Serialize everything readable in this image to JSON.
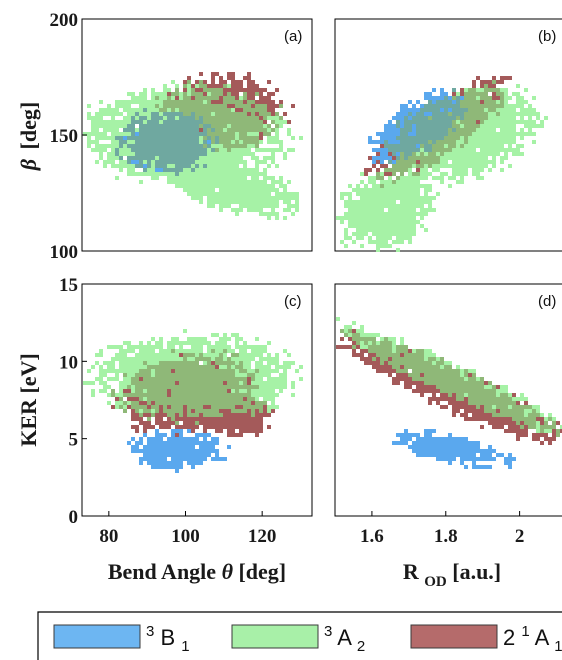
{
  "chart_data": [
    {
      "panel": "(a)",
      "type": "heatmap",
      "xlabel": "",
      "ylabel_main": "β",
      "ylabel_unit": "[deg]",
      "xlim": [
        73,
        133
      ],
      "ylim": [
        100,
        200
      ],
      "xticks": [],
      "yticks": [
        100,
        150,
        200
      ],
      "clusters": [
        {
          "series": "3A2",
          "cx": 100,
          "cy": 150,
          "rx": 26,
          "ry": 20,
          "rot": 0
        },
        {
          "series": "3A2",
          "cx": 112,
          "cy": 128,
          "rx": 18,
          "ry": 10,
          "rot": 15
        },
        {
          "series": "2_1A1",
          "cx": 110,
          "cy": 160,
          "rx": 16,
          "ry": 15,
          "rot": 0
        },
        {
          "series": "3B1",
          "cx": 95,
          "cy": 147,
          "rx": 12,
          "ry": 13,
          "rot": 0
        }
      ]
    },
    {
      "panel": "(b)",
      "type": "heatmap",
      "xlabel": "",
      "ylabel_main": "",
      "ylabel_unit": "",
      "xlim": [
        1.5,
        2.15
      ],
      "ylim": [
        100,
        200
      ],
      "xticks": [],
      "yticks": [],
      "clusters": [
        {
          "series": "3A2",
          "cx": 1.85,
          "cy": 150,
          "rx": 0.2,
          "ry": 18,
          "rot": -20
        },
        {
          "series": "3A2",
          "cx": 1.64,
          "cy": 118,
          "rx": 0.13,
          "ry": 16,
          "rot": -30
        },
        {
          "series": "2_1A1",
          "cx": 1.78,
          "cy": 152,
          "rx": 0.22,
          "ry": 10,
          "rot": -35
        },
        {
          "series": "3B1",
          "cx": 1.72,
          "cy": 153,
          "rx": 0.14,
          "ry": 10,
          "rot": -35
        }
      ]
    },
    {
      "panel": "(c)",
      "type": "heatmap",
      "xlabel_main": "Bend Angle ",
      "xlabel_symbol": "θ",
      "xlabel_unit": " [deg]",
      "ylabel_main": "KER [eV]",
      "xlim": [
        73,
        133
      ],
      "ylim": [
        0,
        15
      ],
      "xticks": [
        80,
        100,
        120
      ],
      "yticks": [
        0,
        5,
        10,
        15
      ],
      "clusters": [
        {
          "series": "3A2",
          "cx": 102,
          "cy": 9,
          "rx": 25,
          "ry": 2.6,
          "rot": 0
        },
        {
          "series": "2_1A1",
          "cx": 100,
          "cy": 8,
          "rx": 17,
          "ry": 2.4,
          "rot": -10
        },
        {
          "series": "2_1A1",
          "cx": 113,
          "cy": 6.5,
          "rx": 9,
          "ry": 1.3,
          "rot": 0
        },
        {
          "series": "3B1",
          "cx": 98,
          "cy": 4.3,
          "rx": 12,
          "ry": 1.2,
          "rot": 0
        }
      ]
    },
    {
      "panel": "(d)",
      "type": "heatmap",
      "xlabel_main": "R",
      "xlabel_sub": "OD",
      "xlabel_unit": " [a.u.]",
      "ylabel_main": "",
      "xlim": [
        1.5,
        2.15
      ],
      "ylim": [
        0,
        15
      ],
      "xticks": [
        1.6,
        1.8,
        2.0
      ],
      "xtick_labels": [
        "1.6",
        "1.8",
        "2"
      ],
      "yticks": [],
      "clusters": [
        {
          "series": "2_1A1",
          "cx": 1.82,
          "cy": 8.2,
          "rx": 0.32,
          "ry": 1.3,
          "rot": 25
        },
        {
          "series": "3A2",
          "cx": 1.82,
          "cy": 8.8,
          "rx": 0.33,
          "ry": 1.0,
          "rot": 25
        },
        {
          "series": "3B1",
          "cx": 1.82,
          "cy": 4.3,
          "rx": 0.15,
          "ry": 0.9,
          "rot": 12
        }
      ]
    }
  ],
  "legend": [
    {
      "key": "3B1",
      "sup": "3",
      "base": "B",
      "sub": "1",
      "prefix": "",
      "color": "#6db6f2"
    },
    {
      "key": "3A2",
      "sup": "3",
      "base": "A",
      "sub": "2",
      "prefix": "",
      "color": "#a8f0a8"
    },
    {
      "key": "2_1A1",
      "sup": "1",
      "base": "A",
      "sub": "1",
      "prefix": "2",
      "color": "#b56b6b"
    }
  ],
  "colors": {
    "3B1": "#5aa8ee",
    "3A2": "#a6f2a6",
    "2_1A1": "#a45a5a",
    "overlap_green_red": "#8fb878",
    "overlap_blue_green": "#6fa8a0",
    "overlap_red_pink": "#d9a6a6"
  }
}
